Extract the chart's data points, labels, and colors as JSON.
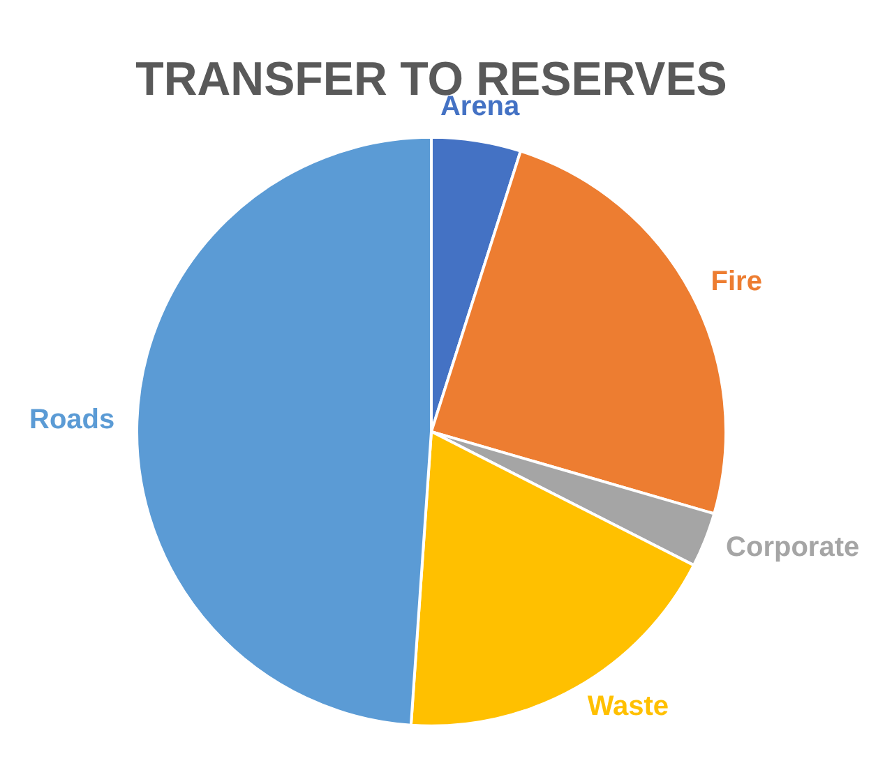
{
  "chart_data": {
    "type": "pie",
    "title": "TRANSFER TO RESERVES",
    "categories": [
      "Arena",
      "Fire",
      "Corporate",
      "Waste",
      "Roads"
    ],
    "values": [
      4.9,
      24.6,
      3.0,
      18.6,
      48.9
    ],
    "colors": [
      "#4472c4",
      "#ed7d31",
      "#a5a5a5",
      "#ffc000",
      "#5b9bd5"
    ],
    "legend": false
  }
}
